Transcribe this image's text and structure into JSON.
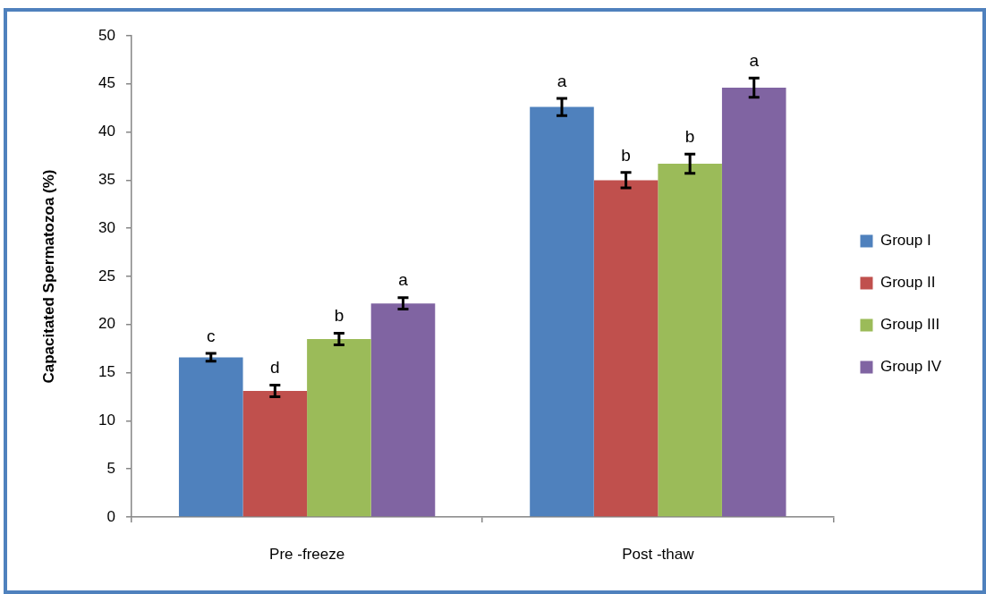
{
  "chart_data": {
    "type": "bar",
    "ylabel": "Capacitated Spermatozoa (%)",
    "categories": [
      "Pre -freeze",
      "Post -thaw"
    ],
    "series": [
      {
        "name": "Group I",
        "color": "#4f81bd",
        "values": [
          16.6,
          42.6
        ],
        "errors": [
          0.4,
          0.9
        ],
        "value_labels": [
          "c",
          "a"
        ]
      },
      {
        "name": "Group II",
        "color": "#c0504d",
        "values": [
          13.1,
          35.0
        ],
        "errors": [
          0.6,
          0.8
        ],
        "value_labels": [
          "d",
          "b"
        ]
      },
      {
        "name": "Group III",
        "color": "#9bbb59",
        "values": [
          18.5,
          36.7
        ],
        "errors": [
          0.6,
          1.0
        ],
        "value_labels": [
          "b",
          "b"
        ]
      },
      {
        "name": "Group IV",
        "color": "#8064a2",
        "values": [
          22.2,
          44.6
        ],
        "errors": [
          0.6,
          1.0
        ],
        "value_labels": [
          "a",
          "a"
        ]
      }
    ],
    "ylim": [
      0,
      50
    ],
    "yticks": [
      0,
      5,
      10,
      15,
      20,
      25,
      30,
      35,
      40,
      45,
      50
    ],
    "legend": "right"
  }
}
